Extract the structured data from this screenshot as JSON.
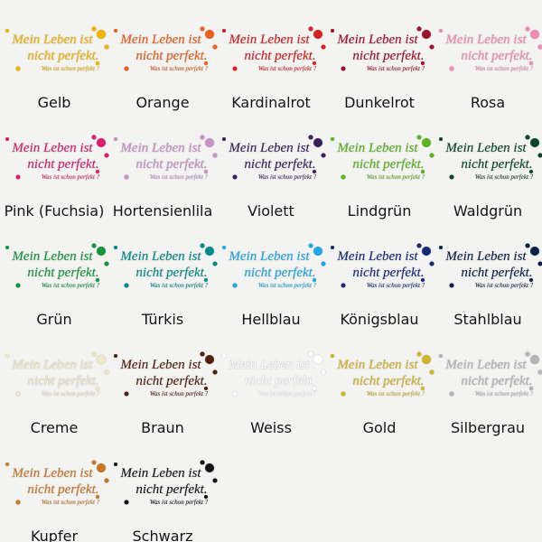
{
  "phrase": {
    "line1": "Mein Leben ist",
    "line2": "nicht perfekt.",
    "line3": "Was ist schon perfekt ?"
  },
  "swatches": [
    {
      "name": "Gelb",
      "color": "#f0b400"
    },
    {
      "name": "Orange",
      "color": "#e8601c"
    },
    {
      "name": "Kardinalrot",
      "color": "#d42020"
    },
    {
      "name": "Dunkelrot",
      "color": "#a0102a"
    },
    {
      "name": "Rosa",
      "color": "#f08cb4"
    },
    {
      "name": "Pink (Fuchsia)",
      "color": "#d81e6e"
    },
    {
      "name": "Hortensienlila",
      "color": "#c890c8"
    },
    {
      "name": "Violett",
      "color": "#3c1e5a"
    },
    {
      "name": "Lindgrün",
      "color": "#5ab41e"
    },
    {
      "name": "Waldgrün",
      "color": "#0a4628"
    },
    {
      "name": "Grün",
      "color": "#14963c"
    },
    {
      "name": "Türkis",
      "color": "#008c8c"
    },
    {
      "name": "Hellblau",
      "color": "#1eaae6"
    },
    {
      "name": "Königsblau",
      "color": "#142878"
    },
    {
      "name": "Stahlblau",
      "color": "#0a2046"
    },
    {
      "name": "Creme",
      "color": "#f0e6c8"
    },
    {
      "name": "Braun",
      "color": "#501e0a"
    },
    {
      "name": "Weiss",
      "color": "#ffffff"
    },
    {
      "name": "Gold",
      "color": "#d2b428"
    },
    {
      "name": "Silbergrau",
      "color": "#b4b4b4"
    },
    {
      "name": "Kupfer",
      "color": "#c87828"
    },
    {
      "name": "Schwarz",
      "color": "#141414"
    }
  ]
}
